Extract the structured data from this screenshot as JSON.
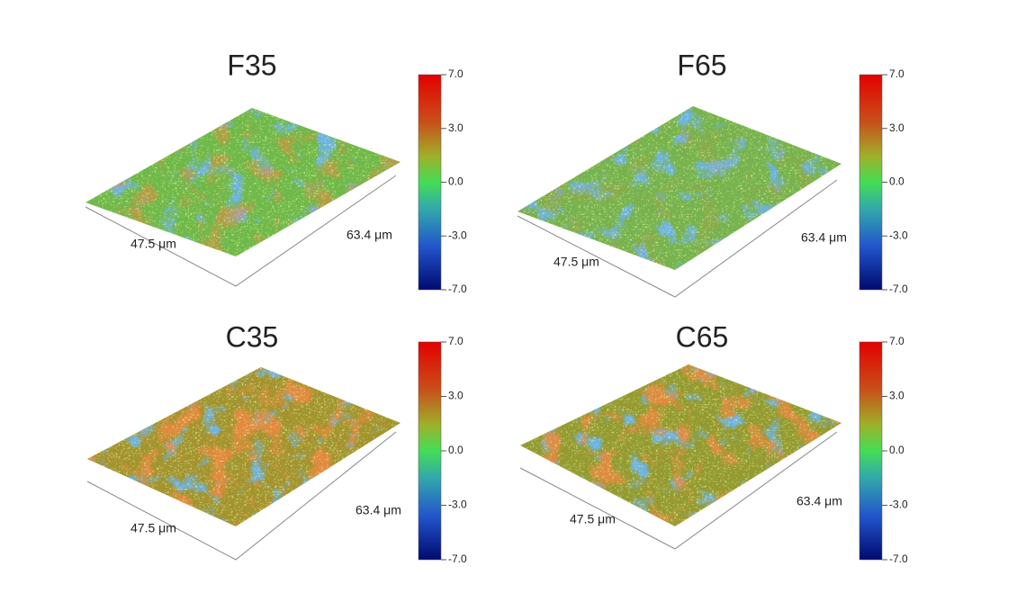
{
  "panels": [
    {
      "title": "F35",
      "x_label": "47.5 μm",
      "y_label": "63.4 μm",
      "colorbar_ticks": [
        "7.0",
        "3.0",
        "0.0",
        "-3.0",
        "-7.0"
      ]
    },
    {
      "title": "F65",
      "x_label": "47.5 μm",
      "y_label": "63.4 μm",
      "colorbar_ticks": [
        "7.0",
        "3.0",
        "0.0",
        "-3.0",
        "-7.0"
      ]
    },
    {
      "title": "C35",
      "x_label": "47.5 μm",
      "y_label": "63.4 μm",
      "colorbar_ticks": [
        "7.0",
        "3.0",
        "0.0",
        "-3.0",
        "-7.0"
      ]
    },
    {
      "title": "C65",
      "x_label": "47.5 μm",
      "y_label": "63.4 μm",
      "colorbar_ticks": [
        "7.0",
        "3.0",
        "0.0",
        "-3.0",
        "-7.0"
      ]
    }
  ]
}
